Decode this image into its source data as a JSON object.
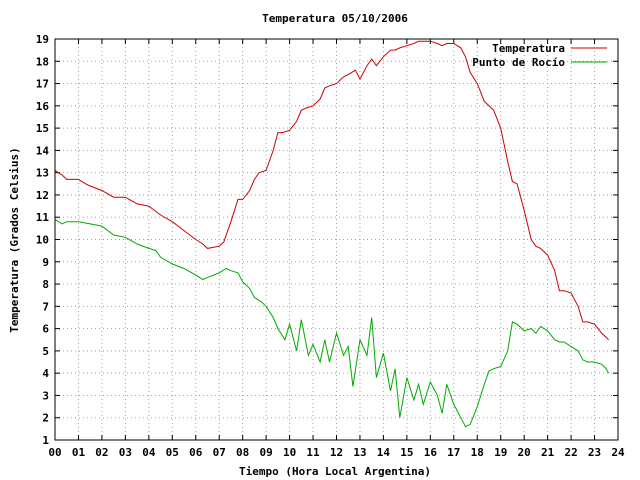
{
  "chart_data": {
    "type": "line",
    "title": "Temperatura 05/10/2006",
    "xlabel": "Tiempo (Hora Local Argentina)",
    "ylabel": "Temperatura (Grados Celsius)",
    "xlim": [
      0,
      24
    ],
    "ylim": [
      1,
      19
    ],
    "xticks": [
      "00",
      "01",
      "02",
      "03",
      "04",
      "05",
      "06",
      "07",
      "08",
      "09",
      "10",
      "11",
      "12",
      "13",
      "14",
      "15",
      "16",
      "17",
      "18",
      "19",
      "20",
      "21",
      "22",
      "23",
      "24"
    ],
    "yticks": [
      1,
      2,
      3,
      4,
      5,
      6,
      7,
      8,
      9,
      10,
      11,
      12,
      13,
      14,
      15,
      16,
      17,
      18,
      19
    ],
    "grid": true,
    "legend_position": "top-right",
    "series": [
      {
        "name": "Temperatura",
        "color": "#cc0000",
        "x": [
          0.0,
          0.3,
          0.5,
          1.0,
          1.3,
          1.5,
          2.0,
          2.5,
          3.0,
          3.5,
          4.0,
          4.5,
          5.0,
          5.5,
          6.0,
          6.3,
          6.5,
          7.0,
          7.2,
          7.5,
          7.8,
          8.0,
          8.3,
          8.5,
          8.7,
          9.0,
          9.3,
          9.5,
          9.7,
          10.0,
          10.3,
          10.5,
          10.7,
          11.0,
          11.3,
          11.5,
          11.7,
          12.0,
          12.3,
          12.5,
          12.8,
          13.0,
          13.3,
          13.5,
          13.7,
          14.0,
          14.3,
          14.5,
          14.7,
          15.0,
          15.3,
          15.5,
          15.7,
          16.0,
          16.3,
          16.5,
          16.7,
          17.0,
          17.3,
          17.5,
          17.7,
          18.0,
          18.3,
          18.5,
          18.7,
          19.0,
          19.3,
          19.5,
          19.7,
          20.0,
          20.3,
          20.5,
          20.7,
          21.0,
          21.3,
          21.5,
          21.7,
          22.0,
          22.3,
          22.5,
          22.7,
          23.0,
          23.3,
          23.5,
          23.6
        ],
        "y": [
          13.1,
          12.9,
          12.7,
          12.7,
          12.5,
          12.4,
          12.2,
          11.9,
          11.9,
          11.6,
          11.5,
          11.1,
          10.8,
          10.4,
          10.0,
          9.8,
          9.6,
          9.7,
          9.9,
          10.8,
          11.8,
          11.8,
          12.2,
          12.7,
          13.0,
          13.1,
          14.0,
          14.8,
          14.8,
          14.9,
          15.3,
          15.8,
          15.9,
          16.0,
          16.3,
          16.8,
          16.9,
          17.0,
          17.3,
          17.4,
          17.6,
          17.2,
          17.8,
          18.1,
          17.8,
          18.2,
          18.5,
          18.5,
          18.6,
          18.7,
          18.8,
          18.9,
          18.9,
          18.9,
          18.8,
          18.7,
          18.8,
          18.8,
          18.6,
          18.2,
          17.5,
          17.0,
          16.2,
          16.0,
          15.8,
          15.0,
          13.5,
          12.6,
          12.5,
          11.3,
          10.0,
          9.7,
          9.6,
          9.3,
          8.6,
          7.7,
          7.7,
          7.6,
          7.0,
          6.3,
          6.3,
          6.2,
          5.8,
          5.6,
          5.5
        ]
      },
      {
        "name": "Punto de Rocío",
        "color": "#00aa00",
        "x": [
          0.0,
          0.3,
          0.5,
          1.0,
          1.5,
          2.0,
          2.5,
          3.0,
          3.5,
          4.0,
          4.3,
          4.5,
          5.0,
          5.5,
          6.0,
          6.3,
          6.5,
          7.0,
          7.3,
          7.5,
          7.8,
          8.0,
          8.3,
          8.5,
          8.8,
          9.0,
          9.3,
          9.5,
          9.8,
          10.0,
          10.3,
          10.5,
          10.8,
          11.0,
          11.3,
          11.5,
          11.7,
          12.0,
          12.3,
          12.5,
          12.7,
          13.0,
          13.3,
          13.5,
          13.7,
          14.0,
          14.3,
          14.5,
          14.7,
          15.0,
          15.3,
          15.5,
          15.7,
          16.0,
          16.3,
          16.5,
          16.7,
          17.0,
          17.3,
          17.5,
          17.7,
          18.0,
          18.3,
          18.5,
          18.7,
          19.0,
          19.3,
          19.5,
          19.7,
          20.0,
          20.3,
          20.5,
          20.7,
          21.0,
          21.3,
          21.5,
          21.7,
          22.0,
          22.3,
          22.5,
          22.7,
          23.0,
          23.3,
          23.5,
          23.6
        ],
        "y": [
          10.9,
          10.7,
          10.8,
          10.8,
          10.7,
          10.6,
          10.2,
          10.1,
          9.8,
          9.6,
          9.5,
          9.2,
          8.9,
          8.7,
          8.4,
          8.2,
          8.3,
          8.5,
          8.7,
          8.6,
          8.5,
          8.1,
          7.8,
          7.4,
          7.2,
          7.0,
          6.5,
          6.0,
          5.5,
          6.2,
          5.0,
          6.4,
          4.8,
          5.3,
          4.5,
          5.5,
          4.5,
          5.8,
          4.8,
          5.2,
          3.4,
          5.5,
          4.8,
          6.5,
          3.8,
          4.9,
          3.2,
          4.2,
          2.0,
          3.8,
          2.8,
          3.5,
          2.6,
          3.6,
          3.0,
          2.2,
          3.5,
          2.6,
          2.0,
          1.6,
          1.7,
          2.5,
          3.5,
          4.1,
          4.2,
          4.3,
          5.0,
          6.3,
          6.2,
          5.9,
          6.0,
          5.8,
          6.1,
          5.9,
          5.5,
          5.4,
          5.4,
          5.2,
          5.0,
          4.6,
          4.5,
          4.5,
          4.4,
          4.2,
          4.0
        ]
      }
    ]
  }
}
